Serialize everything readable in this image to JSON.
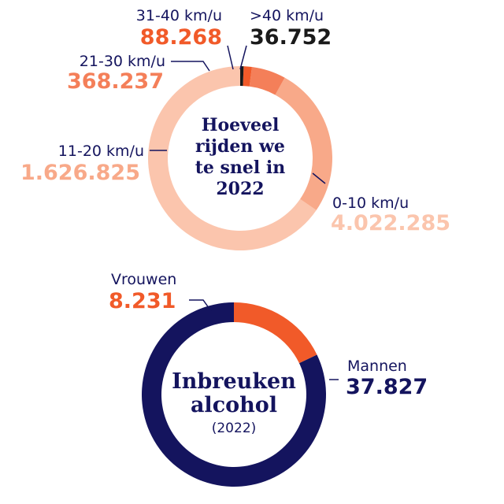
{
  "chart_data": [
    {
      "type": "pie",
      "title": "Hoeveel rijden we te snel in 2022",
      "title_lines": [
        "Hoeveel",
        "rijden we",
        "te snel in",
        "2022"
      ],
      "categories": [
        "0-10 km/u",
        "11-20 km/u",
        "21-30 km/u",
        "31-40 km/u",
        ">40 km/u"
      ],
      "values": [
        4022285,
        1626825,
        368237,
        88268,
        36752
      ],
      "value_labels": [
        "4.022.285",
        "1.626.825",
        "368.237",
        "88.268",
        "36.752"
      ],
      "colors": [
        "#fbc5ad",
        "#f8a989",
        "#f47f59",
        "#f15a29",
        "#1a1a1a"
      ],
      "label_colors": [
        "#14145e",
        "#14145e",
        "#14145e",
        "#14145e",
        "#14145e"
      ],
      "value_colors": [
        "#fbc5ad",
        "#f8a989",
        "#f47f59",
        "#f15a29",
        "#1a1a1a"
      ]
    },
    {
      "type": "pie",
      "title": "Inbreuken alcohol (2022)",
      "title_lines": [
        "Inbreuken",
        "alcohol"
      ],
      "subtitle": "(2022)",
      "categories": [
        "Mannen",
        "Vrouwen"
      ],
      "values": [
        37827,
        8231
      ],
      "value_labels": [
        "37.827",
        "8.231"
      ],
      "colors": [
        "#14145e",
        "#f15a29"
      ],
      "label_colors": [
        "#14145e",
        "#14145e"
      ],
      "value_colors": [
        "#14145e",
        "#f15a29"
      ]
    }
  ]
}
